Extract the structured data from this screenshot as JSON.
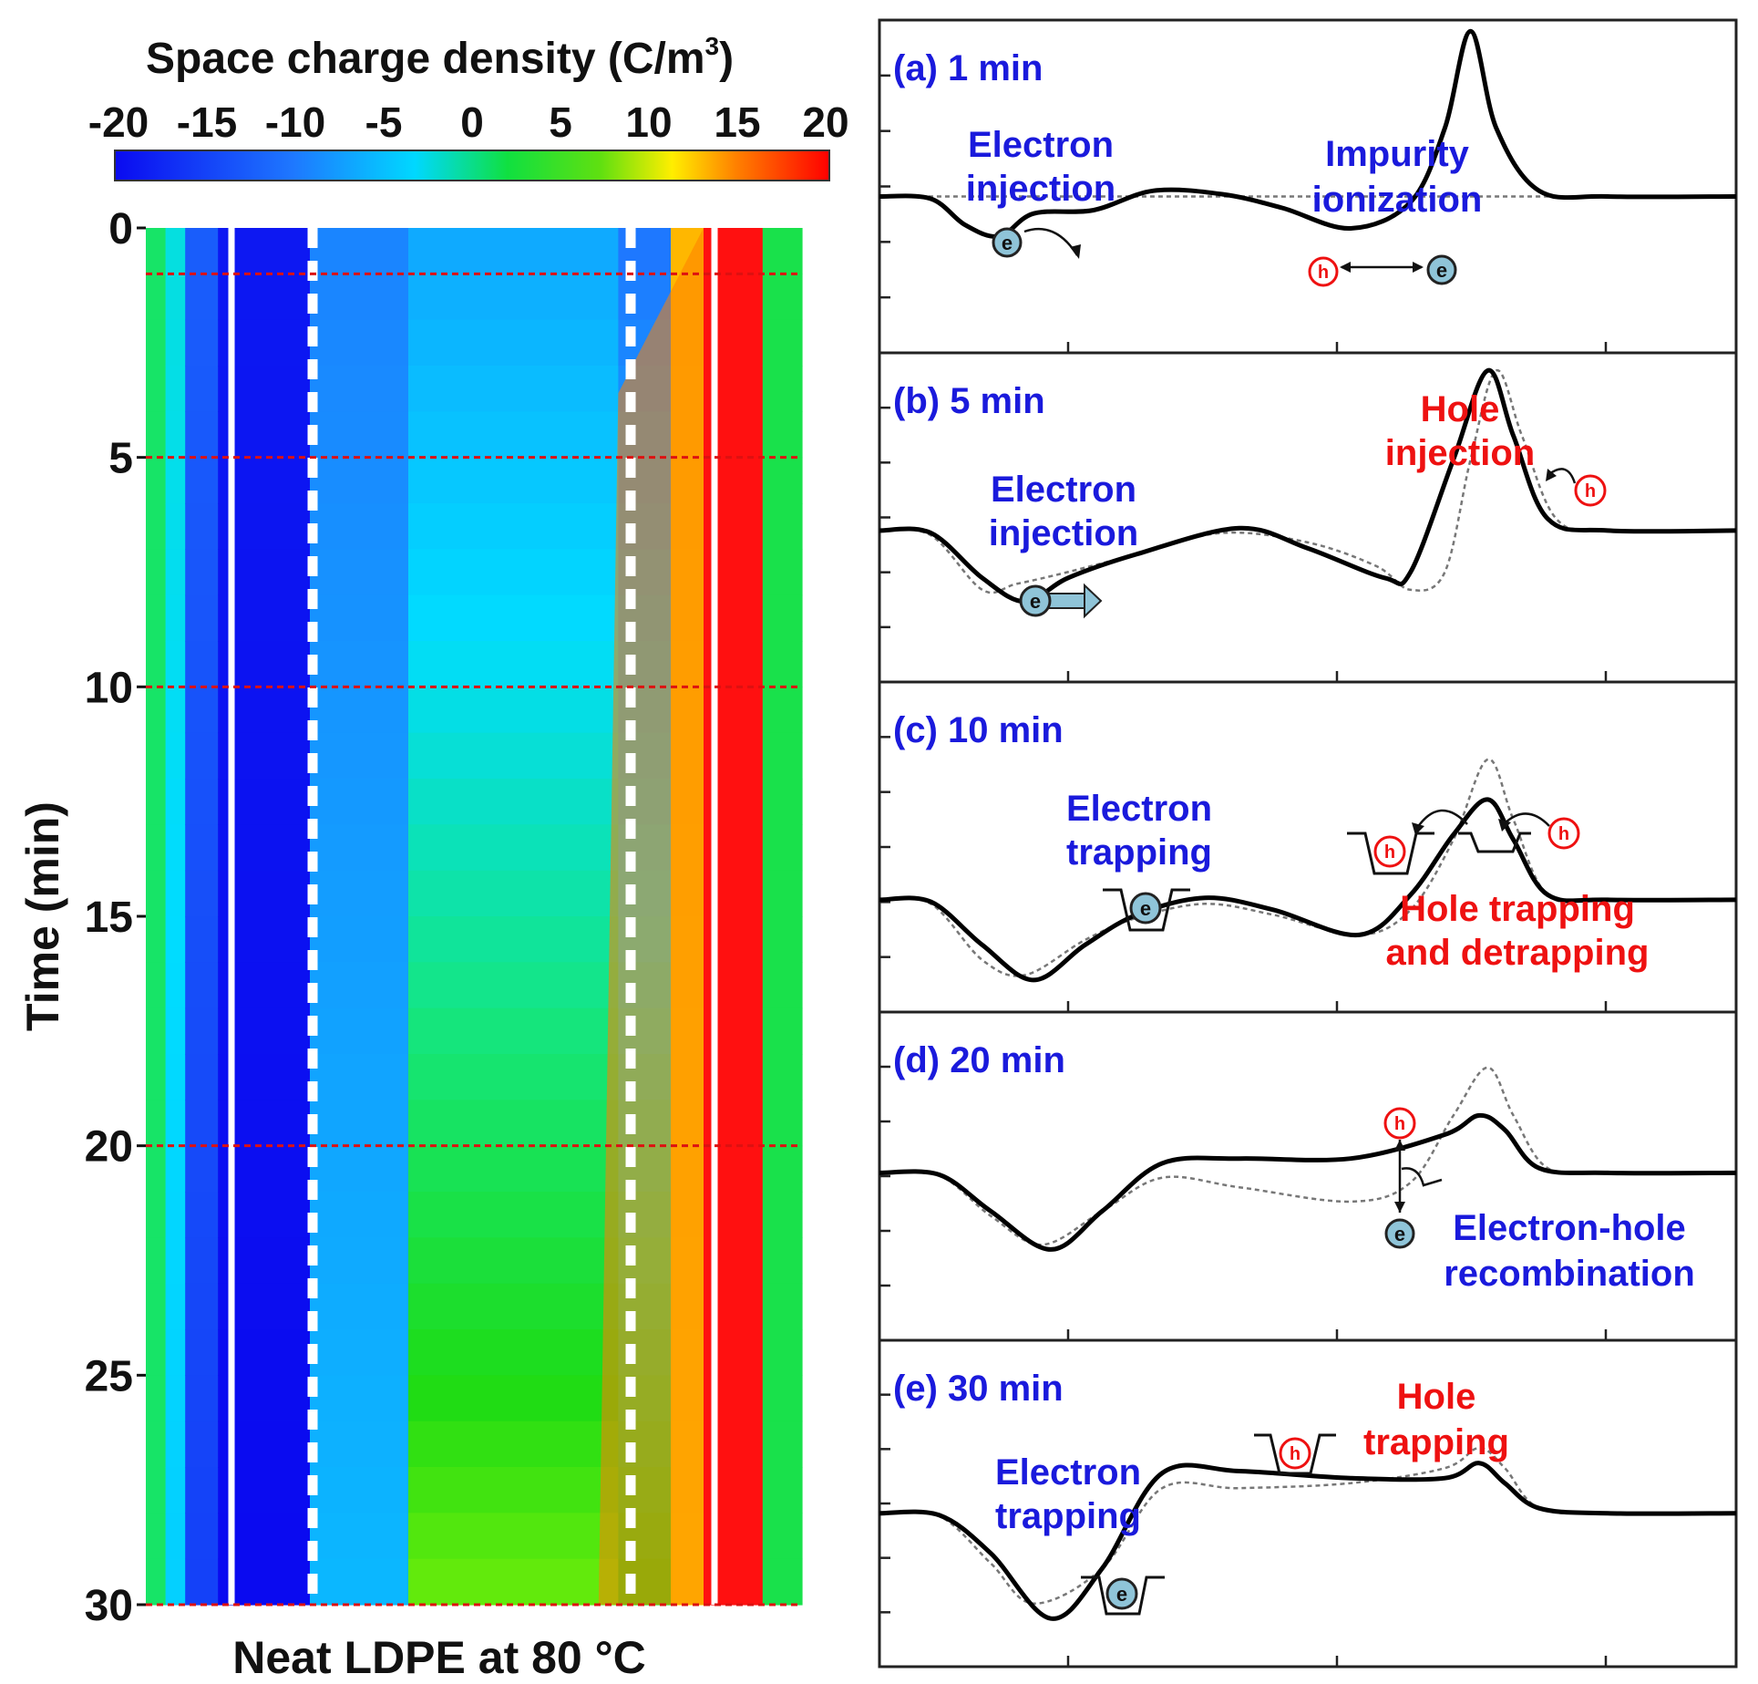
{
  "colors": {
    "blue": "#1a1adc",
    "red": "#ee1111",
    "colormap": [
      "#0a0af0",
      "#1e64ff",
      "#00c8ff",
      "#10e090",
      "#10d810",
      "#c8ff00",
      "#ffee00",
      "#ff8000",
      "#ff1010",
      "#e01010"
    ]
  },
  "chart_data": [
    {
      "type": "heatmap",
      "colorbar": {
        "title": "Space charge density (C/m",
        "title_superscript": "3",
        "title_close": ")",
        "ticks": [
          "-20",
          "-15",
          "-10",
          "-5",
          "0",
          "5",
          "10",
          "15",
          "20"
        ],
        "range": [
          -20,
          20
        ]
      },
      "ylabel": "Time (min)",
      "xlabel": "Neat LDPE at 80 °C",
      "y_ticks": [
        "0",
        "5",
        "10",
        "15",
        "20",
        "25",
        "30"
      ],
      "ylim": [
        0,
        30
      ],
      "marked_times": [
        1,
        5,
        10,
        20,
        30
      ],
      "bands": [
        {
          "from": 0.0,
          "to": 0.03,
          "value_start": 1,
          "value_end": 1
        },
        {
          "from": 0.03,
          "to": 0.06,
          "value_start": -3,
          "value_end": -5
        },
        {
          "from": 0.06,
          "to": 0.11,
          "value_start": -14,
          "value_end": -16
        },
        {
          "from": 0.11,
          "to": 0.25,
          "value_start": -19,
          "value_end": -20
        },
        {
          "from": 0.25,
          "to": 0.4,
          "value_start": -11,
          "value_end": -7
        },
        {
          "from": 0.4,
          "to": 0.72,
          "value_start": -8,
          "value_end": 6
        },
        {
          "from": 0.72,
          "to": 0.8,
          "value_start": -12,
          "value_end": 4
        },
        {
          "from": 0.8,
          "to": 0.85,
          "value_start": 13,
          "value_end": 12
        },
        {
          "from": 0.85,
          "to": 0.94,
          "value_start": 20,
          "value_end": 20
        },
        {
          "from": 0.94,
          "to": 1.0,
          "value_start": 2,
          "value_end": 2
        }
      ]
    },
    {
      "type": "line",
      "panels": [
        {
          "label": "(a) 1 min",
          "solid": [
            [
              0,
              0
            ],
            [
              0.06,
              -0.02
            ],
            [
              0.1,
              -0.25
            ],
            [
              0.14,
              -0.35
            ],
            [
              0.18,
              -0.15
            ],
            [
              0.25,
              -0.12
            ],
            [
              0.32,
              0.05
            ],
            [
              0.4,
              0.02
            ],
            [
              0.47,
              -0.1
            ],
            [
              0.55,
              -0.28
            ],
            [
              0.62,
              -0.05
            ],
            [
              0.66,
              0.6
            ],
            [
              0.69,
              1.45
            ],
            [
              0.72,
              0.6
            ],
            [
              0.77,
              0.05
            ],
            [
              0.85,
              0
            ],
            [
              1,
              0
            ]
          ],
          "dashed": [
            [
              0,
              0
            ],
            [
              1,
              0
            ]
          ],
          "annotations": [
            {
              "text": "Electron",
              "color": "blue"
            },
            {
              "text": "injection",
              "color": "blue"
            },
            {
              "text": "Impurity",
              "color": "blue"
            },
            {
              "text": "ionization",
              "color": "blue"
            }
          ]
        },
        {
          "label": "(b) 5 min",
          "solid": [
            [
              0,
              0
            ],
            [
              0.06,
              -0.02
            ],
            [
              0.12,
              -0.4
            ],
            [
              0.17,
              -0.6
            ],
            [
              0.22,
              -0.4
            ],
            [
              0.3,
              -0.2
            ],
            [
              0.42,
              0.02
            ],
            [
              0.5,
              -0.15
            ],
            [
              0.59,
              -0.4
            ],
            [
              0.62,
              -0.35
            ],
            [
              0.67,
              0.6
            ],
            [
              0.71,
              1.35
            ],
            [
              0.74,
              0.8
            ],
            [
              0.78,
              0.1
            ],
            [
              0.85,
              0
            ],
            [
              1,
              0
            ]
          ],
          "dashed": [
            [
              0,
              0
            ],
            [
              0.06,
              -0.04
            ],
            [
              0.12,
              -0.5
            ],
            [
              0.16,
              -0.45
            ],
            [
              0.22,
              -0.35
            ],
            [
              0.3,
              -0.2
            ],
            [
              0.4,
              -0.02
            ],
            [
              0.5,
              -0.1
            ],
            [
              0.58,
              -0.3
            ],
            [
              0.62,
              -0.5
            ],
            [
              0.66,
              -0.35
            ],
            [
              0.69,
              0.6
            ],
            [
              0.72,
              1.35
            ],
            [
              0.75,
              0.8
            ],
            [
              0.79,
              0.1
            ],
            [
              0.85,
              0
            ],
            [
              1,
              0
            ]
          ],
          "annotations": [
            {
              "text": "Electron",
              "color": "blue"
            },
            {
              "text": "injection",
              "color": "blue"
            },
            {
              "text": "Hole",
              "color": "red"
            },
            {
              "text": "injection",
              "color": "red"
            }
          ]
        },
        {
          "label": "(c) 10 min",
          "solid": [
            [
              0,
              0
            ],
            [
              0.06,
              -0.02
            ],
            [
              0.12,
              -0.45
            ],
            [
              0.18,
              -0.8
            ],
            [
              0.24,
              -0.45
            ],
            [
              0.3,
              -0.15
            ],
            [
              0.38,
              0.02
            ],
            [
              0.46,
              -0.1
            ],
            [
              0.56,
              -0.35
            ],
            [
              0.62,
              0.05
            ],
            [
              0.67,
              0.65
            ],
            [
              0.71,
              1.0
            ],
            [
              0.74,
              0.6
            ],
            [
              0.78,
              0.05
            ],
            [
              0.85,
              0
            ],
            [
              1,
              0
            ]
          ],
          "dashed": [
            [
              0,
              0
            ],
            [
              0.06,
              -0.04
            ],
            [
              0.12,
              -0.6
            ],
            [
              0.17,
              -0.75
            ],
            [
              0.24,
              -0.4
            ],
            [
              0.3,
              -0.18
            ],
            [
              0.38,
              -0.04
            ],
            [
              0.46,
              -0.15
            ],
            [
              0.56,
              -0.35
            ],
            [
              0.62,
              -0.1
            ],
            [
              0.67,
              0.6
            ],
            [
              0.71,
              1.4
            ],
            [
              0.74,
              0.8
            ],
            [
              0.78,
              0.05
            ],
            [
              0.85,
              0
            ],
            [
              1,
              0
            ]
          ],
          "annotations": [
            {
              "text": "Electron",
              "color": "blue"
            },
            {
              "text": "trapping",
              "color": "blue"
            },
            {
              "text": "Hole  trapping",
              "color": "red"
            },
            {
              "text": "and detrapping",
              "color": "red"
            }
          ]
        },
        {
          "label": "(d) 20 min",
          "solid": [
            [
              0,
              0
            ],
            [
              0.07,
              -0.02
            ],
            [
              0.13,
              -0.4
            ],
            [
              0.2,
              -0.8
            ],
            [
              0.26,
              -0.4
            ],
            [
              0.33,
              0.1
            ],
            [
              0.42,
              0.15
            ],
            [
              0.55,
              0.15
            ],
            [
              0.66,
              0.4
            ],
            [
              0.7,
              0.6
            ],
            [
              0.73,
              0.45
            ],
            [
              0.77,
              0.05
            ],
            [
              0.85,
              0
            ],
            [
              1,
              0
            ]
          ],
          "dashed": [
            [
              0,
              0
            ],
            [
              0.07,
              -0.03
            ],
            [
              0.13,
              -0.45
            ],
            [
              0.19,
              -0.75
            ],
            [
              0.26,
              -0.4
            ],
            [
              0.33,
              -0.05
            ],
            [
              0.42,
              -0.15
            ],
            [
              0.55,
              -0.3
            ],
            [
              0.62,
              -0.1
            ],
            [
              0.67,
              0.6
            ],
            [
              0.71,
              1.1
            ],
            [
              0.74,
              0.6
            ],
            [
              0.78,
              0.05
            ],
            [
              0.85,
              0
            ],
            [
              1,
              0
            ]
          ],
          "annotations": [
            {
              "text": "Electron-hole",
              "color": "blue"
            },
            {
              "text": "recombination",
              "color": "blue"
            }
          ]
        },
        {
          "label": "(e) 30 min",
          "solid": [
            [
              0,
              0
            ],
            [
              0.07,
              -0.02
            ],
            [
              0.13,
              -0.4
            ],
            [
              0.2,
              -1.05
            ],
            [
              0.26,
              -0.55
            ],
            [
              0.33,
              0.4
            ],
            [
              0.42,
              0.42
            ],
            [
              0.55,
              0.35
            ],
            [
              0.66,
              0.35
            ],
            [
              0.7,
              0.5
            ],
            [
              0.73,
              0.3
            ],
            [
              0.77,
              0.05
            ],
            [
              0.85,
              0
            ],
            [
              1,
              0
            ]
          ],
          "dashed": [
            [
              0,
              0
            ],
            [
              0.07,
              -0.03
            ],
            [
              0.13,
              -0.5
            ],
            [
              0.18,
              -0.9
            ],
            [
              0.26,
              -0.55
            ],
            [
              0.33,
              0.25
            ],
            [
              0.42,
              0.25
            ],
            [
              0.55,
              0.3
            ],
            [
              0.66,
              0.45
            ],
            [
              0.7,
              0.65
            ],
            [
              0.73,
              0.45
            ],
            [
              0.77,
              0.05
            ],
            [
              0.85,
              0
            ],
            [
              1,
              0
            ]
          ],
          "annotations": [
            {
              "text": "Electron",
              "color": "blue"
            },
            {
              "text": "trapping",
              "color": "blue"
            },
            {
              "text": "Hole",
              "color": "red"
            },
            {
              "text": "trapping",
              "color": "red"
            }
          ]
        }
      ]
    }
  ]
}
